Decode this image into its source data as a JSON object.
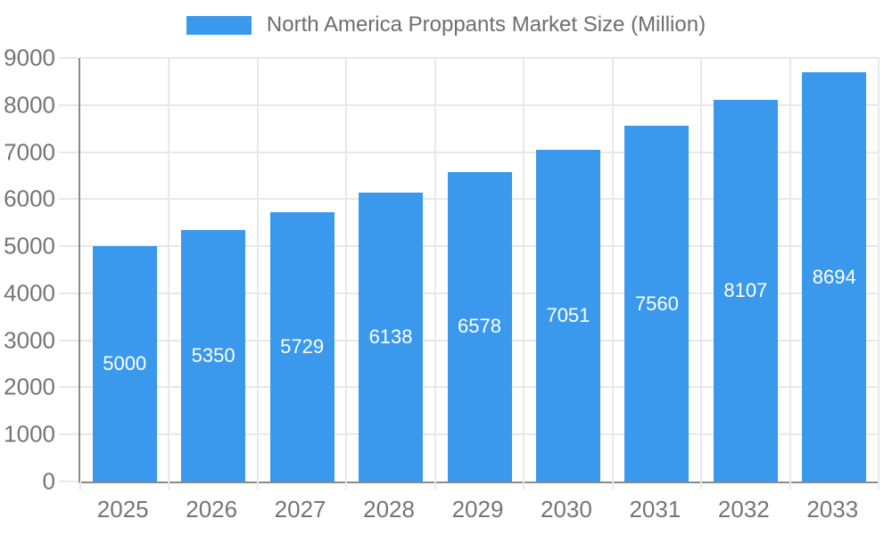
{
  "legend": {
    "label": "North America Proppants Market Size (Million)"
  },
  "chart_data": {
    "type": "bar",
    "title": "North America Proppants Market Size (Million)",
    "series_name": "North America Proppants Market Size (Million)",
    "categories": [
      "2025",
      "2026",
      "2027",
      "2028",
      "2029",
      "2030",
      "2031",
      "2032",
      "2033"
    ],
    "values": [
      5000,
      5350,
      5729,
      6138,
      6578,
      7051,
      7560,
      8107,
      8694
    ],
    "xlabel": "",
    "ylabel": "",
    "ylim": [
      0,
      9000
    ],
    "ytick_step": 1000,
    "ytick_labels": [
      "0",
      "1000",
      "2000",
      "3000",
      "4000",
      "5000",
      "6000",
      "7000",
      "8000",
      "9000"
    ],
    "grid": true,
    "legend_position": "top-center",
    "bar_labels_inside": true,
    "colors": {
      "bar": "#3A99EC",
      "bar_label": "#FFFFFF",
      "axis_text": "#757575",
      "legend_text": "#6E6E6E",
      "grid": "#E8E8E8",
      "axis_line": "#8A8A8A",
      "background": "#FFFFFF"
    }
  }
}
